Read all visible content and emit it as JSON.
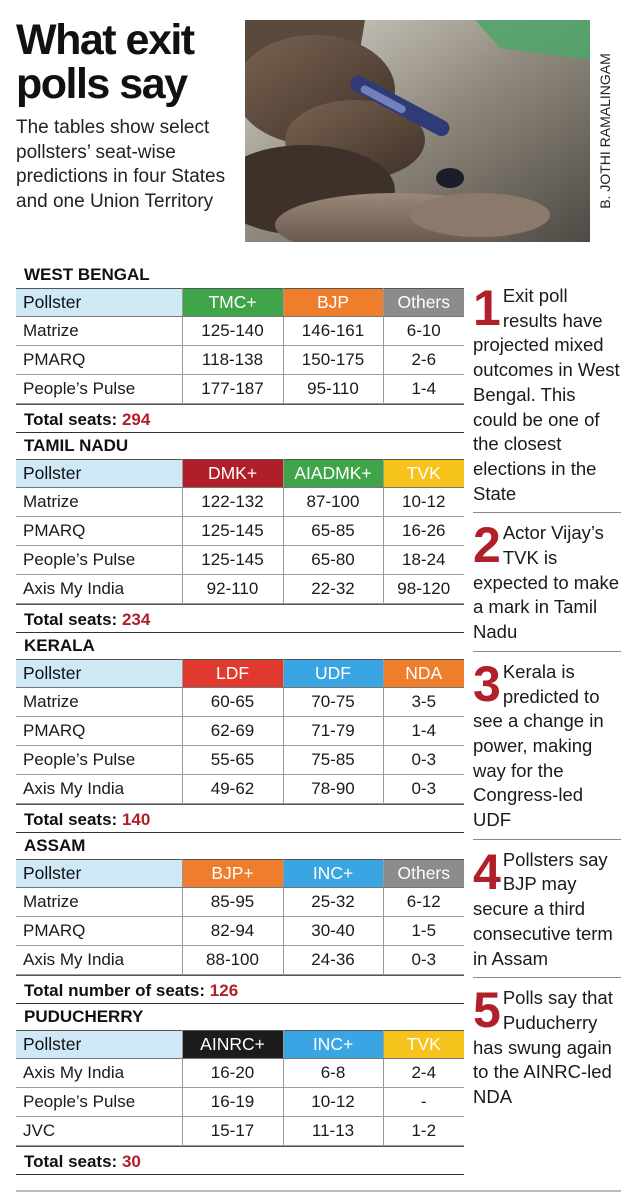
{
  "headline": "What exit polls say",
  "subhead": "The tables show select pollsters’ seat-wise predictions in four States and one Union Territory",
  "photo_credit": "B. JOTHI RAMALINGAM",
  "states": [
    {
      "name": "WEST BENGAL",
      "pollster_header": "Pollster",
      "parties": [
        {
          "label": "TMC+",
          "color": "#3fa548"
        },
        {
          "label": "BJP",
          "color": "#ee7d2c"
        },
        {
          "label": "Others",
          "color": "#8c8c8c"
        }
      ],
      "rows": [
        {
          "pollster": "Matrize",
          "values": [
            "125-140",
            "146-161",
            "6-10"
          ]
        },
        {
          "pollster": "PMARQ",
          "values": [
            "118-138",
            "150-175",
            "2-6"
          ]
        },
        {
          "pollster": "People’s Pulse",
          "values": [
            "177-187",
            "95-110",
            "1-4"
          ]
        }
      ],
      "total_label": "Total seats:",
      "total_value": "294"
    },
    {
      "name": "TAMIL NADU",
      "pollster_header": "Pollster",
      "parties": [
        {
          "label": "DMK+",
          "color": "#b01e2a"
        },
        {
          "label": "AIADMK+",
          "color": "#3fa548"
        },
        {
          "label": "TVK",
          "color": "#f6c21c"
        }
      ],
      "rows": [
        {
          "pollster": "Matrize",
          "values": [
            "122-132",
            "87-100",
            "10-12"
          ]
        },
        {
          "pollster": "PMARQ",
          "values": [
            "125-145",
            "65-85",
            "16-26"
          ]
        },
        {
          "pollster": "People’s Pulse",
          "values": [
            "125-145",
            "65-80",
            "18-24"
          ]
        },
        {
          "pollster": "Axis My India",
          "values": [
            "92-110",
            "22-32",
            "98-120"
          ]
        }
      ],
      "total_label": "Total seats:",
      "total_value": "234"
    },
    {
      "name": "KERALA",
      "pollster_header": "Pollster",
      "parties": [
        {
          "label": "LDF",
          "color": "#e03a2f"
        },
        {
          "label": "UDF",
          "color": "#3aa5e3"
        },
        {
          "label": "NDA",
          "color": "#ee7d2c"
        }
      ],
      "rows": [
        {
          "pollster": "Matrize",
          "values": [
            "60-65",
            "70-75",
            "3-5"
          ]
        },
        {
          "pollster": "PMARQ",
          "values": [
            "62-69",
            "71-79",
            "1-4"
          ]
        },
        {
          "pollster": "People’s Pulse",
          "values": [
            "55-65",
            "75-85",
            "0-3"
          ]
        },
        {
          "pollster": "Axis My India",
          "values": [
            "49-62",
            "78-90",
            "0-3"
          ]
        }
      ],
      "total_label": "Total seats:",
      "total_value": "140"
    },
    {
      "name": "ASSAM",
      "pollster_header": "Pollster",
      "parties": [
        {
          "label": "BJP+",
          "color": "#ee7d2c"
        },
        {
          "label": "INC+",
          "color": "#3aa5e3"
        },
        {
          "label": "Others",
          "color": "#8c8c8c"
        }
      ],
      "rows": [
        {
          "pollster": "Matrize",
          "values": [
            "85-95",
            "25-32",
            "6-12"
          ]
        },
        {
          "pollster": "PMARQ",
          "values": [
            "82-94",
            "30-40",
            "1-5"
          ]
        },
        {
          "pollster": "Axis My India",
          "values": [
            "88-100",
            "24-36",
            "0-3"
          ]
        }
      ],
      "total_label": "Total number of seats:",
      "total_value": "126"
    },
    {
      "name": "PUDUCHERRY",
      "pollster_header": "Pollster",
      "parties": [
        {
          "label": "AINRC+",
          "color": "#1c1c1c"
        },
        {
          "label": "INC+",
          "color": "#3aa5e3"
        },
        {
          "label": "TVK",
          "color": "#f6c21c"
        }
      ],
      "rows": [
        {
          "pollster": "Axis My India",
          "values": [
            "16-20",
            "6-8",
            "2-4"
          ]
        },
        {
          "pollster": "People’s Pulse",
          "values": [
            "16-19",
            "10-12",
            "-"
          ]
        },
        {
          "pollster": "JVC",
          "values": [
            "15-17",
            "11-13",
            "1-2"
          ]
        }
      ],
      "total_label": "Total seats:",
      "total_value": "30"
    }
  ],
  "points": [
    {
      "num": "1",
      "text": "Exit poll results have projected mixed outcomes in West Bengal. This could be one of the closest elections in the State"
    },
    {
      "num": "2",
      "text": "Actor Vijay’s TVK is expected to make a mark in Tamil Nadu"
    },
    {
      "num": "3",
      "text": "Kerala is predicted to see a change in power, making way for the Congress-led UDF"
    },
    {
      "num": "4",
      "text": "Pollsters say BJP may secure a third consecutive term in Assam"
    },
    {
      "num": "5",
      "text": "Polls say that Puducherry has swung again to the AINRC-led NDA"
    }
  ],
  "colors": {
    "accent": "#b0202a",
    "pollster_header_bg": "#cfe8f6"
  }
}
